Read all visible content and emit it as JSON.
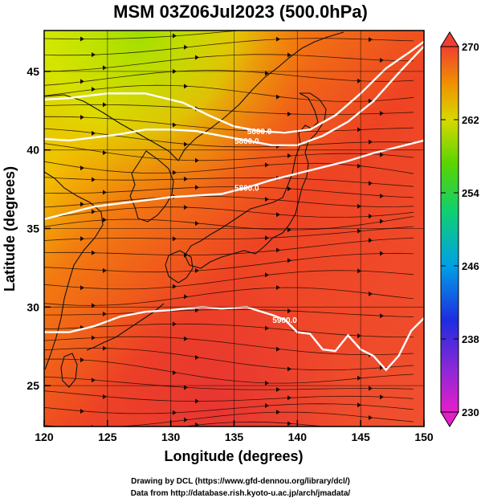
{
  "title": "MSM 03Z06Jul2023 (500.0hPa)",
  "credit_line1": "Drawing by DCL (https://www.gfd-dennou.org/library/dcl/)",
  "credit_line2": "Data from http://database.rish.kyoto-u.ac.jp/arch/jmadata/",
  "chart_data": {
    "type": "heatmap",
    "title": "MSM 03Z06Jul2023 (500.0hPa)",
    "xlabel": "Longitude (degrees)",
    "ylabel": "Latitude  (degrees)",
    "xlim": [
      120,
      150
    ],
    "ylim": [
      22.4,
      47.6
    ],
    "x_ticks": [
      120,
      125,
      130,
      135,
      140,
      145,
      150
    ],
    "y_ticks": [
      25,
      30,
      35,
      40,
      45
    ],
    "grid": true,
    "colorbar": {
      "min": 230,
      "max": 270,
      "ticks": [
        230,
        238,
        246,
        254,
        262,
        270
      ],
      "extend": "both"
    },
    "contour_label": "5900.0",
    "contours": [
      {
        "label": "5600.0",
        "lon": [
          120,
          122,
          125,
          128,
          131,
          133,
          135,
          137,
          139,
          141,
          143,
          145,
          147,
          149,
          150
        ],
        "lat": [
          43.2,
          43.3,
          43.6,
          43.6,
          43.0,
          42.2,
          41.5,
          41.2,
          41.1,
          41.3,
          42.2,
          43.6,
          45.2,
          46.3,
          46.9
        ]
      },
      {
        "label": "5800.0",
        "lon": [
          120,
          122,
          124,
          126,
          128,
          130,
          132,
          134,
          136,
          138,
          140,
          142,
          144,
          146,
          148,
          150
        ],
        "lat": [
          40.7,
          40.6,
          40.8,
          41.0,
          41.3,
          41.3,
          41.2,
          40.9,
          40.6,
          40.3,
          40.3,
          40.9,
          41.8,
          43.1,
          44.9,
          46.6
        ]
      },
      {
        "label": "5800.0",
        "lon": [
          120,
          122,
          124,
          126,
          128,
          130,
          132,
          134,
          136,
          138,
          140,
          142,
          144,
          146,
          148,
          150
        ],
        "lat": [
          35.6,
          36.0,
          36.4,
          36.6,
          36.8,
          37.0,
          37.1,
          37.2,
          37.6,
          38.1,
          38.5,
          38.9,
          39.3,
          39.8,
          40.2,
          40.6
        ]
      },
      {
        "label": "5900.0",
        "lon": [
          120,
          122,
          124,
          126,
          128,
          130,
          131,
          132.5,
          134,
          136,
          138,
          139,
          140,
          141,
          142,
          143,
          144,
          145,
          146,
          147,
          148,
          149,
          150
        ],
        "lat": [
          28.4,
          28.4,
          28.8,
          29.4,
          29.7,
          29.8,
          29.9,
          30.0,
          29.9,
          30.0,
          29.5,
          29.2,
          28.4,
          28.3,
          27.3,
          27.2,
          28.2,
          27.3,
          26.9,
          26.0,
          26.9,
          28.5,
          29.3
        ]
      }
    ]
  }
}
